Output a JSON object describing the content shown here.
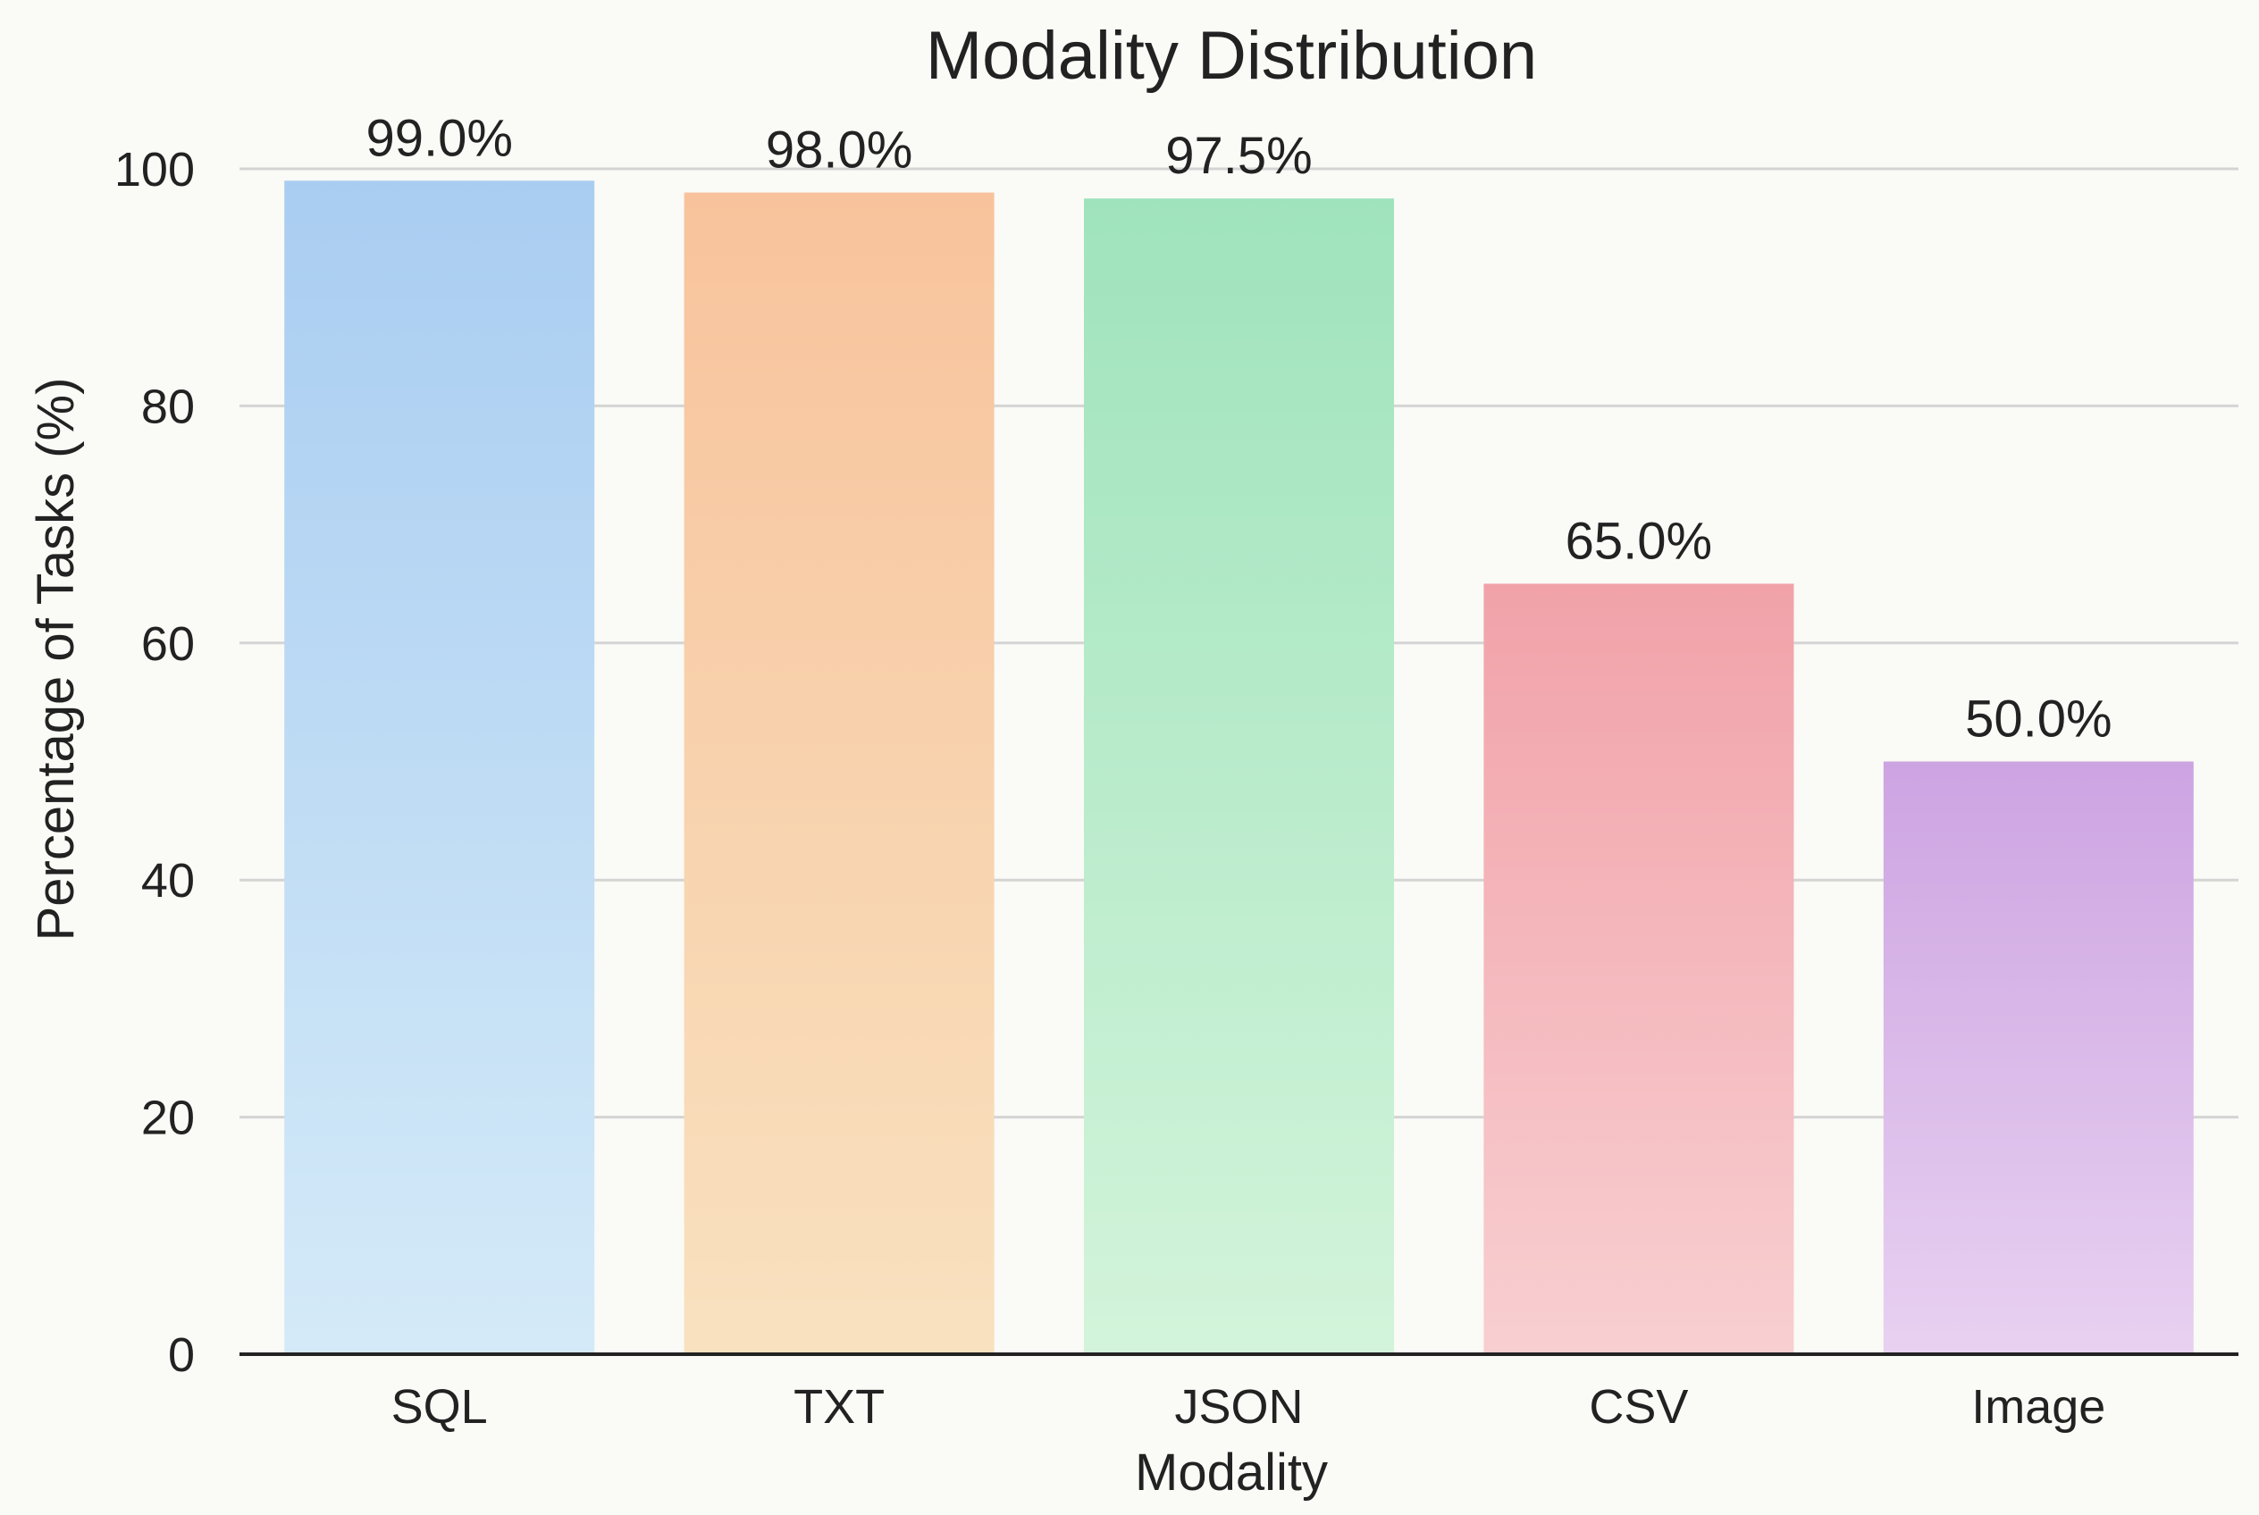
{
  "chart_data": {
    "type": "bar",
    "title": "Modality Distribution",
    "xlabel": "Modality",
    "ylabel": "Percentage of Tasks (%)",
    "categories": [
      "SQL",
      "TXT",
      "JSON",
      "CSV",
      "Image"
    ],
    "values": [
      99.0,
      98.0,
      97.5,
      65.0,
      50.0
    ],
    "data_labels": [
      "99.0%",
      "98.0%",
      "97.5%",
      "65.0%",
      "50.0%"
    ],
    "ylim": [
      0,
      100
    ],
    "yticks": [
      0,
      20,
      40,
      60,
      80,
      100
    ],
    "grid": true,
    "legend": "none",
    "colors": [
      {
        "top": "#a9cdf1",
        "bottom": "#d4eaf8"
      },
      {
        "top": "#f8c39c",
        "bottom": "#f9e1bf"
      },
      {
        "top": "#9fe3bc",
        "bottom": "#d3f4da"
      },
      {
        "top": "#f1a2a9",
        "bottom": "#f8cfd1"
      },
      {
        "top": "#cda4e2",
        "bottom": "#e8d1f1"
      }
    ]
  }
}
